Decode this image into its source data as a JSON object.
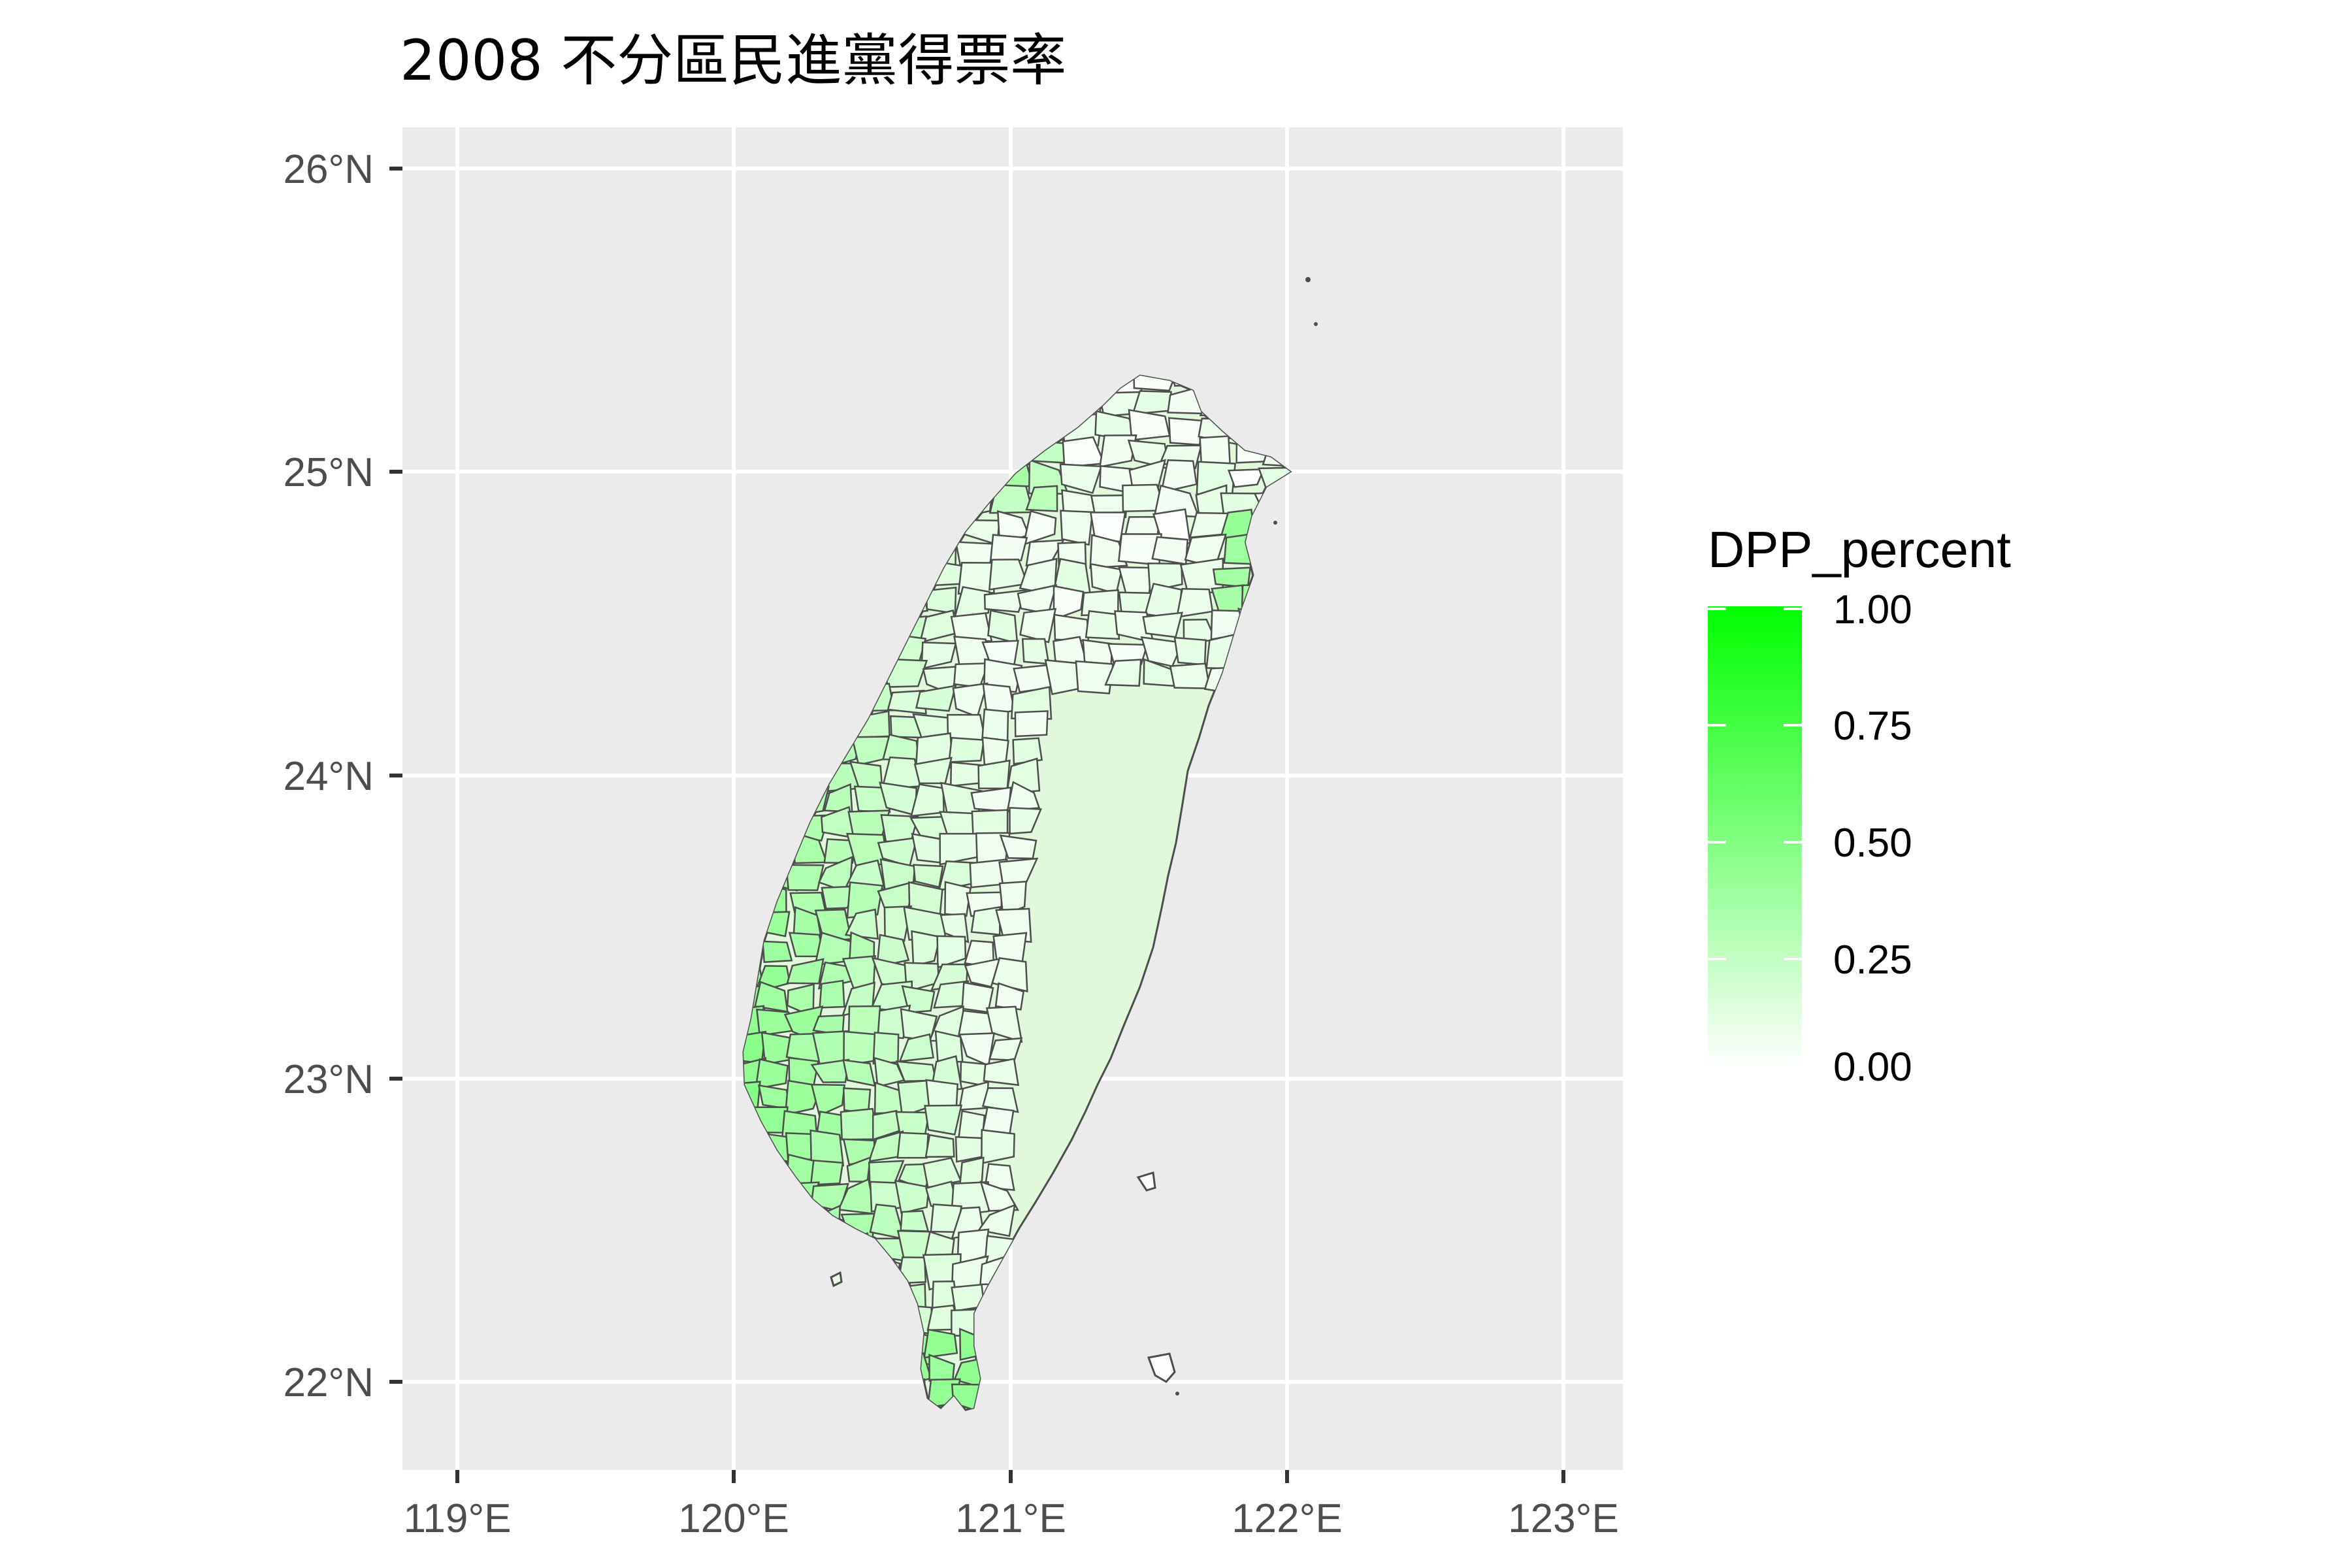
{
  "title": "2008 不分區民進黨得票率",
  "map": {
    "region": "Taiwan",
    "fill_variable": "DPP_percent",
    "x_range": [
      118.8,
      123.2
    ],
    "y_range": [
      21.7,
      26.2
    ],
    "x_ticks": [
      {
        "value": 119,
        "label": "119°E"
      },
      {
        "value": 120,
        "label": "120°E"
      },
      {
        "value": 121,
        "label": "121°E"
      },
      {
        "value": 122,
        "label": "122°E"
      },
      {
        "value": 123,
        "label": "123°E"
      }
    ],
    "y_ticks": [
      {
        "value": 22,
        "label": "22°N"
      },
      {
        "value": 23,
        "label": "23°N"
      },
      {
        "value": 24,
        "label": "24°N"
      },
      {
        "value": 25,
        "label": "25°N"
      },
      {
        "value": 26,
        "label": "26°N"
      }
    ],
    "colors": {
      "panel_bg": "#ebebeb",
      "grid": "#ffffff",
      "border": "#4d4d4d",
      "low": "#ffffff",
      "high": "#00ff00"
    }
  },
  "legend": {
    "title": "DPP_percent",
    "range": [
      0,
      1
    ],
    "labels": [
      "1.00",
      "0.75",
      "0.50",
      "0.25",
      "0.00"
    ],
    "values": [
      1.0,
      0.75,
      0.5,
      0.25,
      0.0
    ]
  }
}
